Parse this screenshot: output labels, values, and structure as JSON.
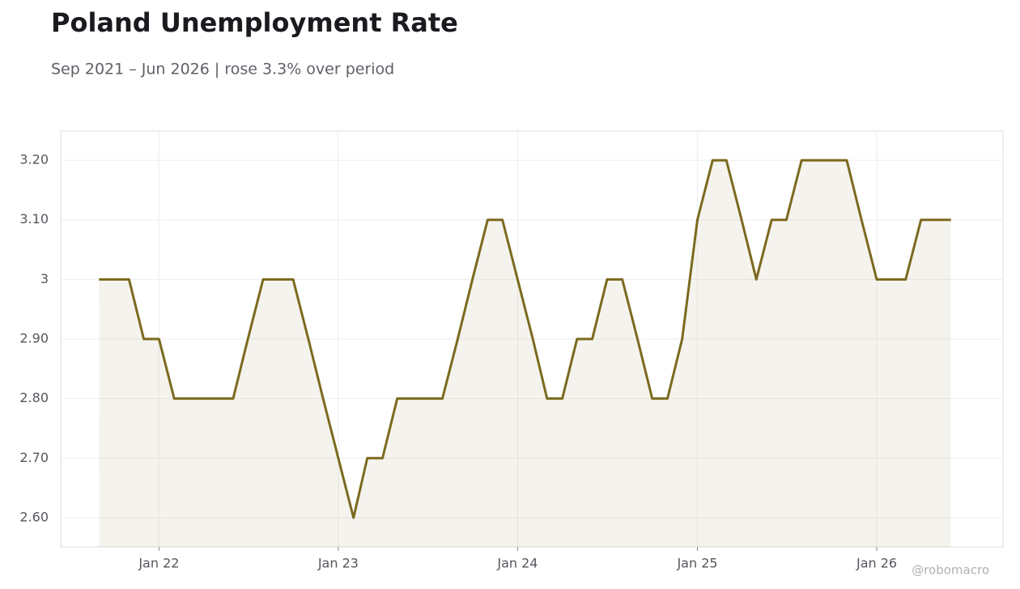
{
  "chart_data": {
    "type": "line",
    "title": "Poland Unemployment Rate",
    "subtitle": "Sep 2021 – Jun 2026 | rose 3.3% over period",
    "watermark": "@robomacro",
    "x": [
      "2021-09",
      "2021-10",
      "2021-11",
      "2021-12",
      "2022-01",
      "2022-02",
      "2022-03",
      "2022-04",
      "2022-05",
      "2022-06",
      "2022-07",
      "2022-08",
      "2022-09",
      "2022-10",
      "2022-11",
      "2022-12",
      "2023-01",
      "2023-02",
      "2023-03",
      "2023-04",
      "2023-05",
      "2023-06",
      "2023-07",
      "2023-08",
      "2023-09",
      "2023-10",
      "2023-11",
      "2023-12",
      "2024-01",
      "2024-02",
      "2024-03",
      "2024-04",
      "2024-05",
      "2024-06",
      "2024-07",
      "2024-08",
      "2024-09",
      "2024-10",
      "2024-11",
      "2024-12",
      "2025-01",
      "2025-02",
      "2025-03",
      "2025-04",
      "2025-05",
      "2025-06",
      "2025-07",
      "2025-08",
      "2025-09",
      "2025-10",
      "2025-11",
      "2025-12",
      "2026-01",
      "2026-02",
      "2026-03",
      "2026-04",
      "2026-05",
      "2026-06"
    ],
    "series": [
      {
        "name": "Unemployment Rate",
        "color": "#7b6a1f",
        "values": [
          3.0,
          3.0,
          3.0,
          2.9,
          2.9,
          2.8,
          2.8,
          2.8,
          2.8,
          2.8,
          2.9,
          3.0,
          3.0,
          3.0,
          2.9,
          2.8,
          2.7,
          2.6,
          2.7,
          2.7,
          2.8,
          2.8,
          2.8,
          2.8,
          2.9,
          3.0,
          3.1,
          3.1,
          3.0,
          2.9,
          2.8,
          2.8,
          2.9,
          2.9,
          3.0,
          3.0,
          2.9,
          2.8,
          2.8,
          2.9,
          3.1,
          3.2,
          3.2,
          3.1,
          3.0,
          3.1,
          3.1,
          3.2,
          3.2,
          3.2,
          3.2,
          3.1,
          3.0,
          3.0,
          3.0,
          3.1,
          3.1,
          3.1
        ]
      }
    ],
    "xlim": [
      "2021-06-15",
      "2026-09-15"
    ],
    "xticks": [
      {
        "value": "2022-01",
        "label": "Jan 22"
      },
      {
        "value": "2023-01",
        "label": "Jan 23"
      },
      {
        "value": "2024-01",
        "label": "Jan 24"
      },
      {
        "value": "2025-01",
        "label": "Jan 25"
      },
      {
        "value": "2026-01",
        "label": "Jan 26"
      }
    ],
    "ylim": [
      2.551,
      3.249
    ],
    "yticks": [
      {
        "value": 2.6,
        "label": "2.60"
      },
      {
        "value": 2.7,
        "label": "2.70"
      },
      {
        "value": 2.8,
        "label": "2.80"
      },
      {
        "value": 2.9,
        "label": "2.90"
      },
      3,
      {
        "value": 3.1,
        "label": "3.10"
      },
      {
        "value": 3.2,
        "label": "3.20"
      }
    ],
    "grid": true
  }
}
